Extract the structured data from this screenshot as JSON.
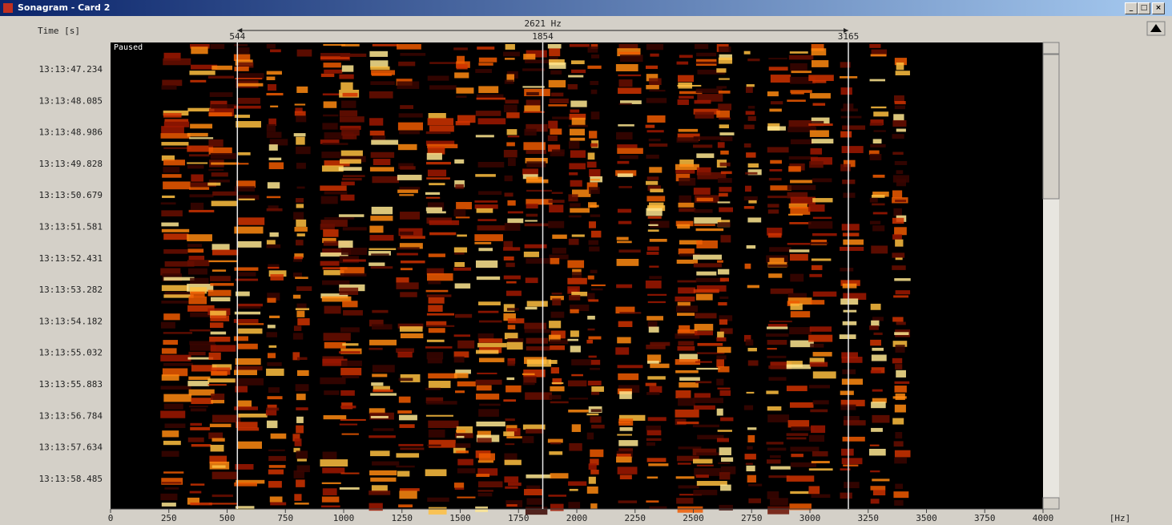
{
  "window": {
    "title": "Sonagram - Card 2"
  },
  "status": "Paused",
  "time_axis": {
    "label": "Time [s]",
    "ticks": [
      "13:13:47.234",
      "13:13:48.085",
      "13:13:48.986",
      "13:13:49.828",
      "13:13:50.679",
      "13:13:51.581",
      "13:13:52.431",
      "13:13:53.282",
      "13:13:54.182",
      "13:13:55.032",
      "13:13:55.883",
      "13:13:56.784",
      "13:13:57.634",
      "13:13:58.485"
    ]
  },
  "frequency_axis": {
    "unit_label": "[Hz]",
    "xlim": [
      0,
      4000
    ],
    "ticks": [
      0,
      250,
      500,
      750,
      1000,
      1250,
      1500,
      1750,
      2000,
      2250,
      2500,
      2750,
      3000,
      3250,
      3500,
      3750,
      4000
    ]
  },
  "cursors": {
    "span_label": "2621 Hz",
    "markers": [
      544,
      1854,
      3165
    ]
  }
}
